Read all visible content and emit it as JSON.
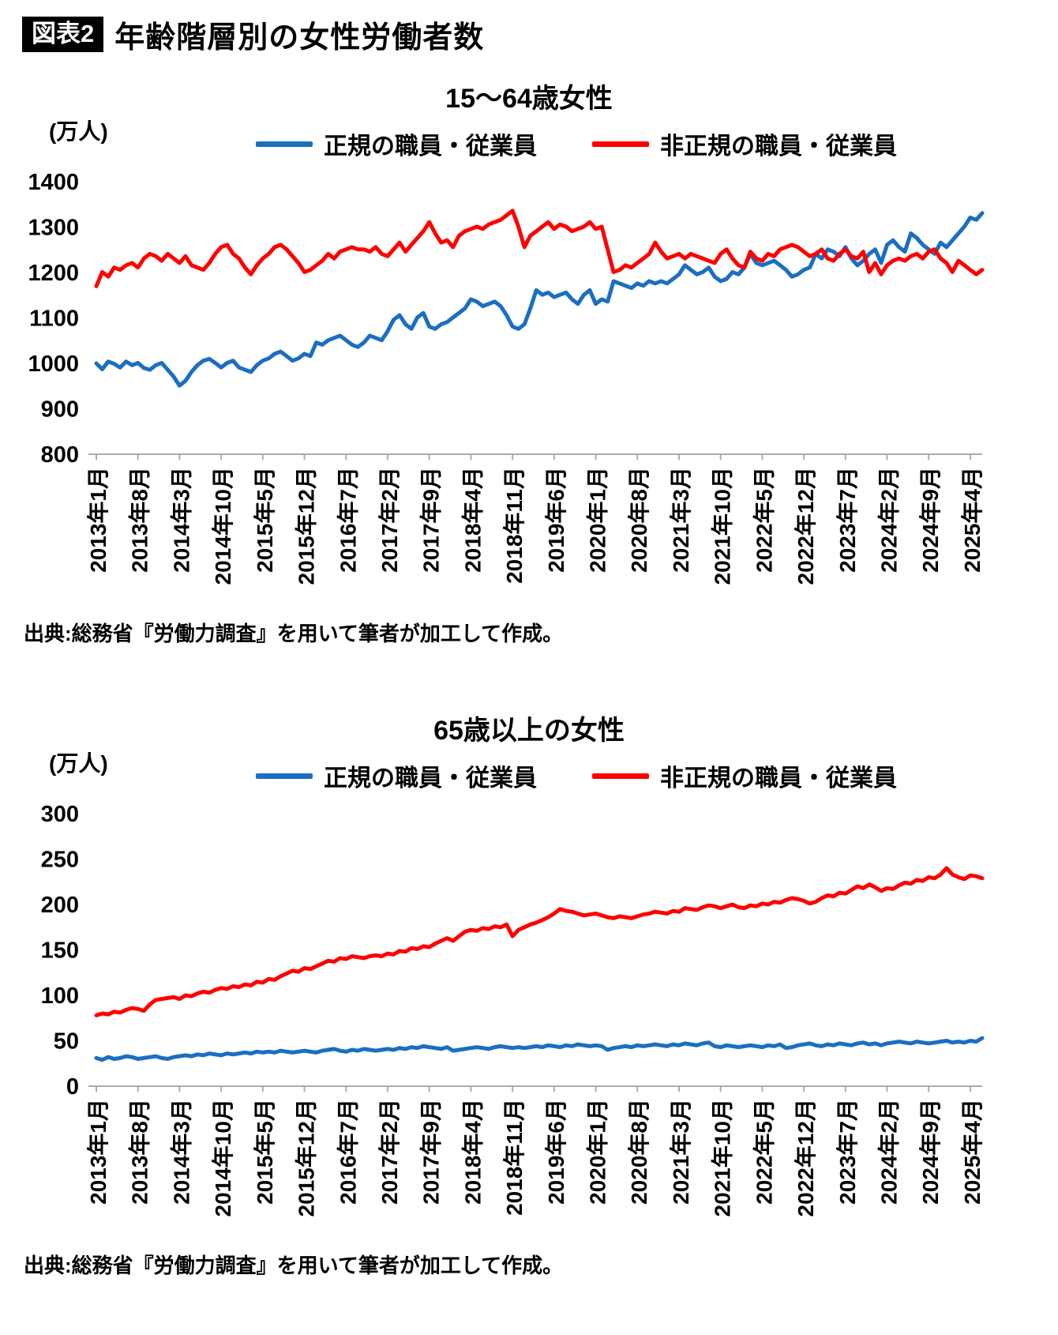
{
  "page": {
    "badge": "図表2",
    "title": "年齢階層別の女性労働者数"
  },
  "chart_data": [
    {
      "type": "line",
      "title": "15〜64歳女性",
      "unit": "(万人)",
      "xlabel": "",
      "ylabel": "万人",
      "ylim": [
        800,
        1400
      ],
      "ytick": 100,
      "grid": false,
      "legend_position": "top",
      "source": "出典:総務省『労働力調査』を用いて筆者が加工して作成。",
      "x_tick_every": 7,
      "x_tick_labels": [
        "2013年1月",
        "2013年8月",
        "2014年3月",
        "2014年10月",
        "2015年5月",
        "2015年12月",
        "2016年7月",
        "2017年2月",
        "2017年9月",
        "2018年4月",
        "2018年11月",
        "2019年6月",
        "2020年1月",
        "2020年8月",
        "2021年3月",
        "2021年10月",
        "2022年5月",
        "2022年12月",
        "2023年7月",
        "2024年2月",
        "2024年9月",
        "2025年4月"
      ],
      "series": [
        {
          "name": "正規の職員・従業員",
          "color": "#1b6ec2",
          "values": [
            1000,
            987,
            1004,
            999,
            991,
            1004,
            996,
            1001,
            990,
            986,
            996,
            1001,
            986,
            971,
            951,
            962,
            981,
            996,
            1006,
            1010,
            1001,
            991,
            1001,
            1006,
            991,
            986,
            981,
            996,
            1006,
            1011,
            1021,
            1026,
            1016,
            1006,
            1011,
            1021,
            1016,
            1046,
            1041,
            1051,
            1056,
            1061,
            1051,
            1041,
            1036,
            1046,
            1061,
            1056,
            1051,
            1071,
            1096,
            1106,
            1086,
            1076,
            1101,
            1111,
            1081,
            1076,
            1086,
            1091,
            1101,
            1111,
            1121,
            1141,
            1136,
            1126,
            1131,
            1136,
            1126,
            1106,
            1081,
            1076,
            1086,
            1121,
            1161,
            1151,
            1156,
            1146,
            1151,
            1156,
            1141,
            1131,
            1151,
            1161,
            1131,
            1141,
            1136,
            1181,
            1176,
            1171,
            1166,
            1176,
            1171,
            1181,
            1176,
            1181,
            1176,
            1186,
            1196,
            1216,
            1206,
            1196,
            1201,
            1211,
            1191,
            1181,
            1186,
            1201,
            1196,
            1211,
            1241,
            1221,
            1216,
            1221,
            1226,
            1216,
            1206,
            1191,
            1196,
            1206,
            1211,
            1241,
            1231,
            1251,
            1246,
            1236,
            1256,
            1231,
            1216,
            1226,
            1241,
            1251,
            1221,
            1261,
            1271,
            1256,
            1246,
            1286,
            1276,
            1261,
            1251,
            1241,
            1266,
            1256,
            1271,
            1286,
            1301,
            1321,
            1316,
            1331
          ]
        },
        {
          "name": "非正規の職員・従業員",
          "color": "#ff0000",
          "values": [
            1170,
            1201,
            1191,
            1211,
            1206,
            1216,
            1221,
            1211,
            1231,
            1241,
            1236,
            1226,
            1241,
            1231,
            1221,
            1236,
            1216,
            1211,
            1206,
            1221,
            1241,
            1256,
            1261,
            1241,
            1231,
            1211,
            1196,
            1216,
            1231,
            1241,
            1256,
            1261,
            1251,
            1236,
            1221,
            1201,
            1206,
            1216,
            1226,
            1241,
            1231,
            1246,
            1251,
            1256,
            1251,
            1251,
            1246,
            1256,
            1241,
            1236,
            1251,
            1266,
            1246,
            1261,
            1276,
            1291,
            1311,
            1286,
            1266,
            1271,
            1256,
            1281,
            1291,
            1296,
            1301,
            1296,
            1306,
            1311,
            1316,
            1326,
            1336,
            1301,
            1256,
            1281,
            1291,
            1301,
            1311,
            1296,
            1306,
            1301,
            1291,
            1296,
            1301,
            1311,
            1296,
            1301,
            1251,
            1201,
            1206,
            1216,
            1211,
            1221,
            1231,
            1241,
            1266,
            1246,
            1231,
            1236,
            1241,
            1231,
            1241,
            1236,
            1231,
            1226,
            1221,
            1241,
            1251,
            1231,
            1216,
            1211,
            1246,
            1231,
            1226,
            1241,
            1236,
            1251,
            1256,
            1261,
            1256,
            1246,
            1236,
            1241,
            1251,
            1231,
            1226,
            1241,
            1251,
            1236,
            1231,
            1246,
            1201,
            1221,
            1196,
            1216,
            1226,
            1231,
            1226,
            1236,
            1241,
            1231,
            1246,
            1251,
            1231,
            1221,
            1201,
            1226,
            1216,
            1206,
            1196,
            1206
          ]
        }
      ]
    },
    {
      "type": "line",
      "title": "65歳以上の女性",
      "unit": "(万人)",
      "xlabel": "",
      "ylabel": "万人",
      "ylim": [
        0,
        300
      ],
      "ytick": 50,
      "grid": false,
      "legend_position": "top",
      "source": "出典:総務省『労働力調査』を用いて筆者が加工して作成。",
      "x_tick_every": 7,
      "x_tick_labels": [
        "2013年1月",
        "2013年8月",
        "2014年3月",
        "2014年10月",
        "2015年5月",
        "2015年12月",
        "2016年7月",
        "2017年2月",
        "2017年9月",
        "2018年4月",
        "2018年11月",
        "2019年6月",
        "2020年1月",
        "2020年8月",
        "2021年3月",
        "2021年10月",
        "2022年5月",
        "2022年12月",
        "2023年7月",
        "2024年2月",
        "2024年9月",
        "2025年4月"
      ],
      "series": [
        {
          "name": "正規の職員・従業員",
          "color": "#1b6ec2",
          "values": [
            31,
            29,
            32,
            30,
            31,
            33,
            32,
            30,
            31,
            32,
            33,
            31,
            30,
            32,
            33,
            34,
            33,
            35,
            34,
            36,
            35,
            34,
            36,
            35,
            36,
            37,
            36,
            38,
            37,
            38,
            37,
            39,
            38,
            37,
            38,
            39,
            38,
            37,
            39,
            40,
            41,
            39,
            38,
            40,
            39,
            41,
            40,
            39,
            40,
            41,
            40,
            42,
            41,
            43,
            42,
            44,
            43,
            42,
            41,
            43,
            39,
            40,
            41,
            42,
            43,
            42,
            41,
            43,
            44,
            43,
            42,
            43,
            42,
            43,
            44,
            43,
            45,
            44,
            43,
            45,
            44,
            46,
            45,
            44,
            45,
            44,
            40,
            42,
            43,
            44,
            43,
            45,
            44,
            45,
            46,
            45,
            44,
            46,
            45,
            47,
            46,
            45,
            47,
            48,
            44,
            43,
            45,
            44,
            43,
            44,
            45,
            44,
            43,
            45,
            44,
            46,
            42,
            43,
            45,
            46,
            47,
            45,
            44,
            46,
            45,
            47,
            46,
            45,
            47,
            48,
            46,
            47,
            45,
            47,
            48,
            49,
            48,
            47,
            49,
            48,
            47,
            48,
            49,
            50,
            48,
            49,
            48,
            50,
            49,
            53
          ]
        },
        {
          "name": "非正規の職員・従業員",
          "color": "#ff0000",
          "values": [
            78,
            80,
            79,
            82,
            81,
            84,
            86,
            85,
            83,
            90,
            95,
            96,
            97,
            98,
            96,
            100,
            99,
            102,
            104,
            103,
            106,
            108,
            107,
            110,
            109,
            112,
            111,
            115,
            114,
            118,
            117,
            121,
            124,
            127,
            126,
            130,
            129,
            132,
            135,
            138,
            137,
            141,
            140,
            143,
            142,
            141,
            143,
            144,
            143,
            146,
            145,
            149,
            148,
            152,
            151,
            154,
            153,
            157,
            160,
            163,
            160,
            165,
            170,
            172,
            171,
            174,
            173,
            176,
            175,
            178,
            165,
            172,
            175,
            178,
            180,
            183,
            186,
            190,
            195,
            193,
            192,
            190,
            188,
            189,
            190,
            188,
            186,
            185,
            187,
            186,
            185,
            187,
            189,
            190,
            192,
            191,
            190,
            193,
            192,
            196,
            195,
            194,
            197,
            199,
            198,
            196,
            198,
            200,
            197,
            196,
            199,
            198,
            201,
            200,
            203,
            202,
            205,
            207,
            206,
            204,
            201,
            203,
            207,
            210,
            209,
            213,
            212,
            216,
            220,
            218,
            222,
            219,
            215,
            218,
            217,
            221,
            224,
            223,
            227,
            226,
            230,
            229,
            233,
            240,
            233,
            230,
            228,
            232,
            231,
            229
          ]
        }
      ]
    }
  ]
}
